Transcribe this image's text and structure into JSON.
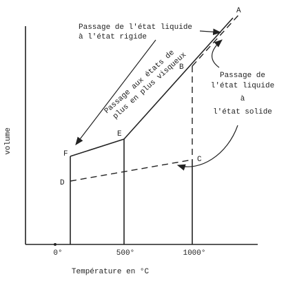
{
  "axes": {
    "y_label": "volume",
    "x_label": "Température en °C",
    "x_ticks": [
      "0°",
      "500°",
      "1000°"
    ]
  },
  "points": {
    "A": "A",
    "B": "B",
    "C": "C",
    "D": "D",
    "E": "E",
    "F": "F"
  },
  "annotations": {
    "rigid": [
      "Passage de l'état liquide",
      "à l'état rigide"
    ],
    "viscous": [
      "Passage aux états de",
      "plus en plus visqueux"
    ],
    "solid": [
      "Passage de",
      "l'état liquide",
      "à",
      "l'état solide"
    ]
  }
}
